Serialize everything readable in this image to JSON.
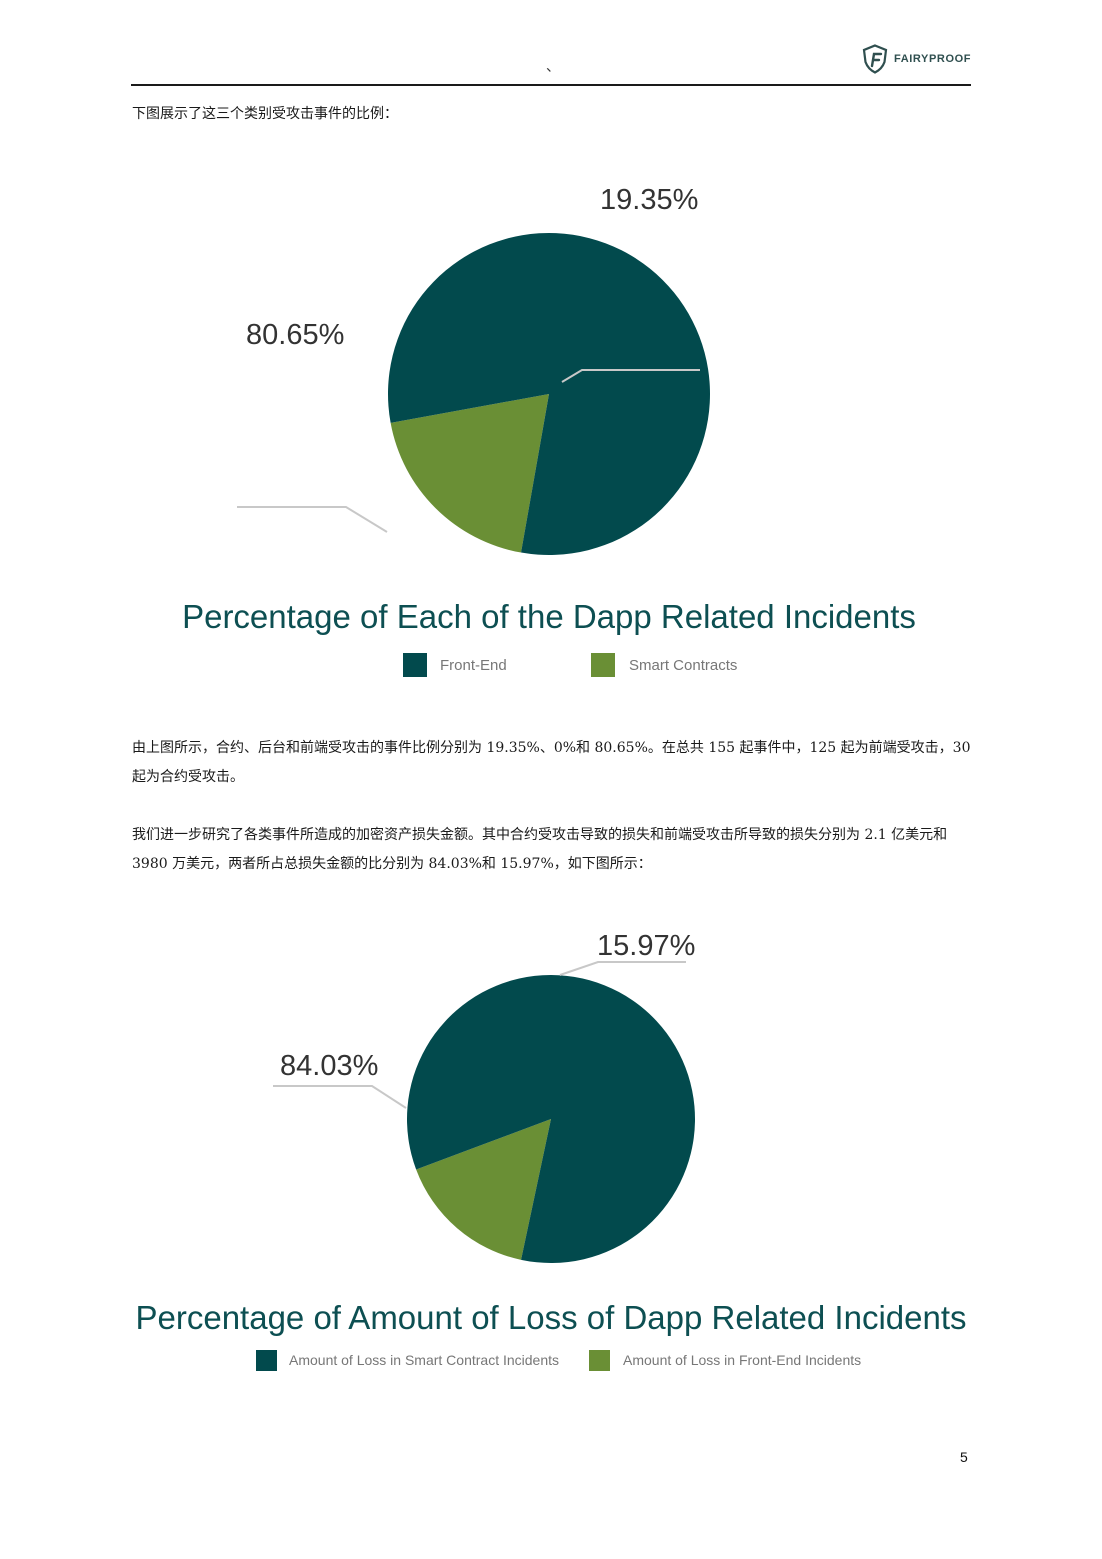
{
  "header": {
    "mark": "、",
    "logo_text": "FAIRYPROOF",
    "logo_icon": "fairyproof-shield-icon"
  },
  "paragraphs": {
    "intro": "下图展示了这三个类别受攻击事件的比例：",
    "result": "由上图所示，合约、后台和前端受攻击的事件比例分别为 19.35%、0%和 80.65%。在总共 155 起事件中，125 起为前端受攻击，30 起为合约受攻击。",
    "loss": "我们进一步研究了各类事件所造成的加密资产损失金额。其中合约受攻击导致的损失和前端受攻击所导致的损失分别为 2.1 亿美元和 3980 万美元，两者所占总损失金额的比分别为 84.03%和 15.97%，如下图所示："
  },
  "colors": {
    "dark_teal": "#024a4d",
    "olive_green": "#6a8f35",
    "title": "#0d4f52"
  },
  "chart_data": [
    {
      "type": "pie",
      "title": "Percentage of Each of the Dapp Related Incidents",
      "slices": [
        {
          "label": "Front-End",
          "value": 80.65,
          "value_label": "80.65%",
          "color": "#024a4d"
        },
        {
          "label": "Smart Contracts",
          "value": 19.35,
          "value_label": "19.35%",
          "color": "#6a8f35"
        }
      ],
      "legend": [
        "Front-End",
        "Smart Contracts"
      ],
      "legend_position": "bottom"
    },
    {
      "type": "pie",
      "title": "Percentage of Amount of Loss of Dapp Related Incidents",
      "slices": [
        {
          "label": "Amount of Loss in Smart Contract Incidents",
          "value": 84.03,
          "value_label": "84.03%",
          "color": "#024a4d"
        },
        {
          "label": "Amount of Loss in Front-End Incidents",
          "value": 15.97,
          "value_label": "15.97%",
          "color": "#6a8f35"
        }
      ],
      "legend": [
        "Amount of Loss in Smart Contract Incidents",
        "Amount of Loss in Front-End Incidents"
      ],
      "legend_position": "bottom"
    }
  ],
  "page_number": "5"
}
